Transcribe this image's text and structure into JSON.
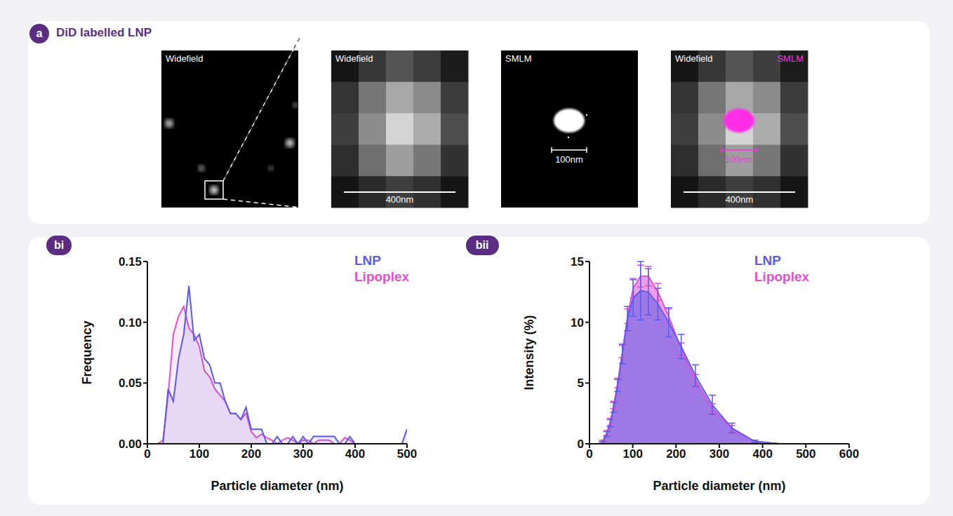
{
  "panel_a": {
    "label": "a",
    "title": "DiD labelled LNP",
    "images": [
      {
        "title": "Widefield"
      },
      {
        "title": "Widefield",
        "scale_bar": "400nm"
      },
      {
        "title": "SMLM",
        "scale_bar": "100nm"
      },
      {
        "title": "Widefield",
        "overlay_title": "SMLM",
        "scale_bar": "400nm",
        "overlay_scale_bar": "100nm"
      }
    ]
  },
  "chart_data": [
    {
      "panel": "bi",
      "type": "line",
      "x_label": "Particle diameter (nm)",
      "y_label": "Frequency",
      "x": [
        20,
        30,
        40,
        50,
        60,
        70,
        80,
        90,
        100,
        110,
        120,
        130,
        140,
        150,
        160,
        170,
        180,
        190,
        200,
        210,
        220,
        230,
        240,
        250,
        260,
        270,
        280,
        290,
        300,
        310,
        320,
        330,
        340,
        350,
        360,
        370,
        380,
        390,
        400,
        410,
        420,
        430,
        440,
        450,
        460,
        470,
        480,
        490,
        500
      ],
      "series": [
        {
          "name": "LNP",
          "color": "#5b5be6",
          "values": [
            null,
            0,
            0.045,
            0.035,
            0.07,
            0.09,
            0.13,
            0.085,
            0.09,
            0.07,
            0.065,
            0.05,
            0.05,
            0.035,
            0.025,
            0.025,
            0.02,
            0.03,
            0.012,
            0.012,
            0.012,
            0,
            0,
            0.006,
            0,
            0,
            0.006,
            0,
            0.006,
            0,
            0.006,
            0.006,
            0.006,
            0.006,
            0.006,
            0,
            0,
            0.006,
            0,
            0,
            0,
            0,
            0,
            0,
            0,
            0,
            0,
            0,
            0.012
          ]
        },
        {
          "name": "Lipoplex",
          "color": "#e24fd0",
          "values": [
            0,
            0.003,
            0.04,
            0.09,
            0.105,
            0.113,
            0.095,
            0.09,
            0.08,
            0.06,
            0.055,
            0.045,
            0.04,
            0.035,
            0.025,
            0.025,
            0.02,
            0.025,
            0.01,
            0.005,
            0.008,
            0.005,
            0.003,
            0,
            0.003,
            0.005,
            0.003,
            0,
            0.003,
            0.003,
            0,
            0.003,
            0.003,
            0.003,
            0,
            0,
            0.005,
            0.003,
            0,
            0,
            0,
            0,
            0,
            0,
            0,
            0,
            0,
            0,
            0
          ]
        }
      ],
      "xlim": [
        0,
        500
      ],
      "ylim": [
        0,
        0.15
      ],
      "xticks": [
        0,
        100,
        200,
        300,
        400,
        500
      ],
      "yticks": [
        {
          "value": 0,
          "label": "0.00"
        },
        {
          "value": 0.05,
          "label": "0.05"
        },
        {
          "value": 0.1,
          "label": "0.10"
        },
        {
          "value": 0.15,
          "label": "0.15"
        }
      ],
      "legend": "top right"
    },
    {
      "panel": "bii",
      "type": "area",
      "x_label": "Particle diameter (nm)",
      "y_label": "Intensity (%)",
      "x": [
        30,
        40,
        48,
        56,
        65,
        76,
        88,
        101,
        118,
        136,
        158,
        183,
        212,
        245,
        284,
        329,
        382,
        442,
        512,
        594
      ],
      "series": [
        {
          "name": "LNP",
          "color": "#5b5be6",
          "values": [
            0.1,
            0.8,
            1.7,
            3.0,
            4.8,
            7.4,
            10.3,
            12.0,
            12.6,
            12.5,
            11.5,
            10.0,
            8.0,
            5.6,
            3.2,
            1.3,
            0.2,
            0,
            0,
            0
          ],
          "errors": [
            0.1,
            0.2,
            0.3,
            0.4,
            0.5,
            0.8,
            1.0,
            1.5,
            2.4,
            1.9,
            1.3,
            1.2,
            1.0,
            0.9,
            0.8,
            0.4,
            0.1,
            0,
            0,
            0
          ]
        },
        {
          "name": "Lipoplex",
          "color": "#e24fd0",
          "values": [
            0.2,
            0.9,
            1.8,
            3.2,
            5.0,
            7.6,
            10.5,
            12.8,
            13.8,
            13.8,
            12.5,
            10.5,
            7.8,
            5.2,
            2.9,
            1.2,
            0.2,
            0,
            0,
            0
          ],
          "errors": [
            0.1,
            0.2,
            0.3,
            0.3,
            0.4,
            0.5,
            0.6,
            0.8,
            0.9,
            0.8,
            0.7,
            0.6,
            0.5,
            0.5,
            0.4,
            0.3,
            0.1,
            0,
            0,
            0
          ]
        }
      ],
      "xlim": [
        0,
        600
      ],
      "ylim": [
        0,
        15
      ],
      "xticks": [
        0,
        100,
        200,
        300,
        400,
        500,
        600
      ],
      "yticks": [
        0,
        5,
        10,
        15
      ],
      "legend": "top right"
    }
  ]
}
